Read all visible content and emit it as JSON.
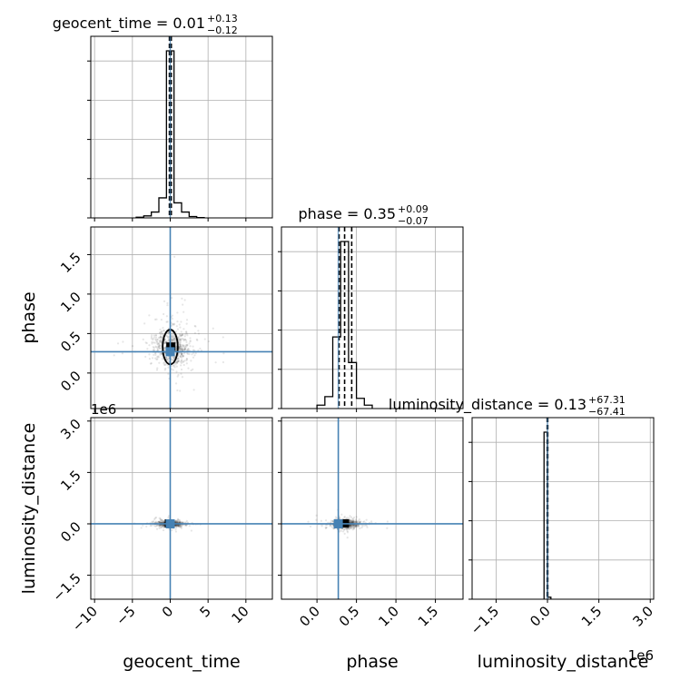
{
  "chart_data": {
    "type": "corner",
    "parameters": [
      "geocent_time",
      "phase",
      "luminosity_distance"
    ],
    "truths": {
      "geocent_time": 0.0,
      "phase": 0.27,
      "luminosity_distance": 0.0
    },
    "colors": {
      "truth": "#4682b4",
      "hist": "#000000",
      "grid": "#b0b0b0",
      "scatter": "#333333"
    },
    "grid": true,
    "panels": [
      {
        "id": "geocent_time-hist",
        "kind": "hist1d",
        "param": "geocent_time",
        "title": {
          "main": "geocent_time = 0.01",
          "sup": "+0.13",
          "sub": "−0.12"
        },
        "xlim": [
          -10.5,
          13.5
        ],
        "bins": [
          -4.5,
          -3.5,
          -2.5,
          -1.5,
          -0.5,
          0.5,
          1.5,
          2.5,
          3.5,
          4.5
        ],
        "counts": [
          0.004,
          0.012,
          0.035,
          0.12,
          1.0,
          0.09,
          0.035,
          0.008,
          0.002
        ],
        "quantiles": [
          -0.11,
          0.01,
          0.14
        ],
        "ytick_fracs": [
          0,
          0.2,
          0.4,
          0.6,
          0.8
        ]
      },
      {
        "id": "phase-hist",
        "kind": "hist1d",
        "param": "phase",
        "title": {
          "main": "phase = 0.35",
          "sup": "+0.09",
          "sub": "−0.07"
        },
        "xlim": [
          -0.45,
          1.85
        ],
        "bins": [
          0.0,
          0.1,
          0.2,
          0.3,
          0.4,
          0.5,
          0.6,
          0.7
        ],
        "counts": [
          0.02,
          0.07,
          0.42,
          0.98,
          0.27,
          0.06,
          0.02
        ],
        "quantiles": [
          0.28,
          0.35,
          0.44
        ],
        "ytick_fracs": [
          0,
          0.2,
          0.4,
          0.6,
          0.8
        ]
      },
      {
        "id": "luminosity_distance-hist",
        "kind": "hist1d",
        "param": "luminosity_distance",
        "title": {
          "main": "luminosity_distance = 0.13",
          "sup": "+67.31",
          "sub": "−67.41"
        },
        "xlim": [
          -2.2,
          3.1
        ],
        "bins": [
          -0.1,
          0.0,
          0.1
        ],
        "counts": [
          1.0,
          0.012
        ],
        "quantiles": [
          -0.01,
          0.0,
          0.01
        ],
        "ytick_fracs": [
          0,
          0.2,
          0.4,
          0.6,
          0.8
        ]
      },
      {
        "id": "phase-vs-geocent_time",
        "kind": "scatter2d",
        "x": "geocent_time",
        "y": "phase",
        "xlim": [
          -10.5,
          13.5
        ],
        "ylim": [
          -0.45,
          1.85
        ],
        "center": [
          0.2,
          0.33
        ],
        "spread": [
          1.2,
          0.12
        ],
        "contour": {
          "cx": 0.0,
          "cy": 0.33,
          "rx": 1.0,
          "ry": 0.22
        }
      },
      {
        "id": "luminosity_distance-vs-geocent_time",
        "kind": "scatter2d",
        "x": "geocent_time",
        "y": "luminosity_distance",
        "xlim": [
          -10.5,
          13.5
        ],
        "ylim": [
          -2.2,
          3.1
        ],
        "center": [
          0.0,
          0.0
        ],
        "spread": [
          0.8,
          0.04
        ]
      },
      {
        "id": "luminosity_distance-vs-phase",
        "kind": "scatter2d",
        "x": "phase",
        "y": "luminosity_distance",
        "xlim": [
          -0.45,
          1.85
        ],
        "ylim": [
          -2.2,
          3.1
        ],
        "center": [
          0.36,
          0.0
        ],
        "spread": [
          0.08,
          0.06
        ]
      }
    ],
    "axes": {
      "geocent_time": {
        "label": "geocent_time",
        "ticks": [
          -10,
          -5,
          0,
          5,
          10
        ],
        "tick_labels": [
          "−10",
          "−5",
          "0",
          "5",
          "10"
        ]
      },
      "phase": {
        "label": "phase",
        "ticks": [
          0.0,
          0.5,
          1.0,
          1.5
        ],
        "tick_labels": [
          "0.0",
          "0.5",
          "1.0",
          "1.5"
        ]
      },
      "luminosity_distance": {
        "label": "luminosity_distance",
        "ticks": [
          -1.5,
          0.0,
          1.5,
          3.0
        ],
        "tick_labels": [
          "−1.5",
          "0.0",
          "1.5",
          "3.0"
        ],
        "offset_text": "1e6"
      }
    }
  }
}
